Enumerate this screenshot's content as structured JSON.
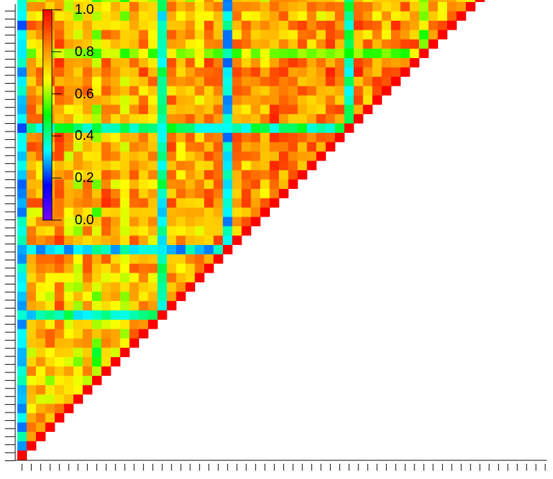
{
  "chart_data": {
    "type": "heatmap",
    "shape": "lower-triangle",
    "n": 57,
    "colorbar": {
      "min": 0.0,
      "max": 1.0,
      "ticks": [
        "1.0",
        "0.8",
        "0.6",
        "0.4",
        "0.2",
        "0.0"
      ],
      "tick_values": [
        1.0,
        0.8,
        0.6,
        0.4,
        0.2,
        0.0
      ],
      "colormap": [
        "#7a00ff",
        "#0000ff",
        "#00ffff",
        "#00ff00",
        "#ffff00",
        "#ff8000",
        "#ff0000"
      ]
    },
    "diagonal_value": 1.0,
    "row_profile": [
      0.25,
      0.78,
      0.72,
      0.75,
      0.85,
      0.7,
      0.62,
      0.78,
      0.55,
      0.8,
      0.7,
      0.6,
      0.8,
      0.78,
      0.7,
      0.42,
      0.8,
      0.68,
      0.75,
      0.7,
      0.82,
      0.85,
      0.35,
      0.8,
      0.78,
      0.82,
      0.7,
      0.88,
      0.85,
      0.8,
      0.82,
      0.8,
      0.78,
      0.85,
      0.82,
      0.4,
      0.85,
      0.8,
      0.82,
      0.78,
      0.85,
      0.88,
      0.85,
      0.6,
      0.8,
      0.78,
      0.82,
      0.7,
      0.75,
      0.62,
      0.7,
      0.78,
      0.6,
      0.8,
      0.7,
      0.72,
      0.45
    ],
    "low_stripes": [
      {
        "index": 0,
        "value": 0.3
      },
      {
        "index": 15,
        "value": 0.38
      },
      {
        "index": 22,
        "value": 0.32
      },
      {
        "index": 35,
        "value": 0.42
      },
      {
        "index": 43,
        "value": 0.6
      },
      {
        "index": 56,
        "value": 0.45
      }
    ]
  }
}
